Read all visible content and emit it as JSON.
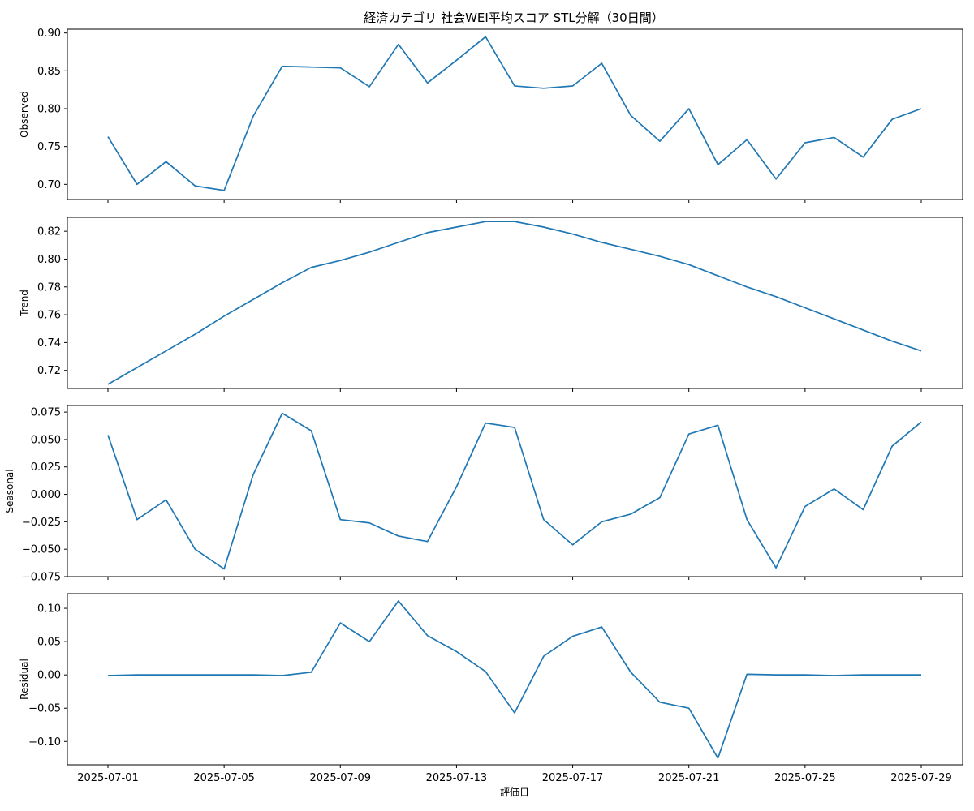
{
  "chart_data": {
    "type": "line",
    "title": "経済カテゴリ 社会WEI平均スコア STL分解（30日間）",
    "xlabel": "評価日",
    "x": [
      "2025-07-01",
      "2025-07-02",
      "2025-07-03",
      "2025-07-04",
      "2025-07-05",
      "2025-07-06",
      "2025-07-07",
      "2025-07-08",
      "2025-07-09",
      "2025-07-10",
      "2025-07-11",
      "2025-07-12",
      "2025-07-13",
      "2025-07-14",
      "2025-07-15",
      "2025-07-16",
      "2025-07-17",
      "2025-07-18",
      "2025-07-19",
      "2025-07-20",
      "2025-07-21",
      "2025-07-22",
      "2025-07-23",
      "2025-07-24",
      "2025-07-25",
      "2025-07-26",
      "2025-07-27",
      "2025-07-28",
      "2025-07-29"
    ],
    "xticks": [
      "2025-07-01",
      "2025-07-05",
      "2025-07-09",
      "2025-07-13",
      "2025-07-17",
      "2025-07-21",
      "2025-07-25",
      "2025-07-29"
    ],
    "line_color": "#1f77b4",
    "grid": false,
    "panels": [
      {
        "name": "observed",
        "ylabel": "Observed",
        "ylim": [
          0.68,
          0.905
        ],
        "yticks": [
          0.7,
          0.75,
          0.8,
          0.85,
          0.9
        ],
        "ytick_labels": [
          "0.70",
          "0.75",
          "0.80",
          "0.85",
          "0.90"
        ],
        "values": [
          0.763,
          0.7,
          0.73,
          0.698,
          0.692,
          0.79,
          0.856,
          0.855,
          0.854,
          0.829,
          0.885,
          0.834,
          0.864,
          0.895,
          0.83,
          0.827,
          0.83,
          0.86,
          0.791,
          0.757,
          0.8,
          0.726,
          0.759,
          0.707,
          0.755,
          0.762,
          0.736,
          0.786,
          0.8
        ]
      },
      {
        "name": "trend",
        "ylabel": "Trend",
        "ylim": [
          0.707,
          0.83
        ],
        "yticks": [
          0.72,
          0.74,
          0.76,
          0.78,
          0.8,
          0.82
        ],
        "ytick_labels": [
          "0.72",
          "0.74",
          "0.76",
          "0.78",
          "0.80",
          "0.82"
        ],
        "values": [
          0.71,
          0.722,
          0.734,
          0.746,
          0.759,
          0.771,
          0.783,
          0.794,
          0.799,
          0.805,
          0.812,
          0.819,
          0.823,
          0.827,
          0.827,
          0.823,
          0.818,
          0.812,
          0.807,
          0.802,
          0.796,
          0.788,
          0.78,
          0.773,
          0.765,
          0.757,
          0.749,
          0.741,
          0.734
        ]
      },
      {
        "name": "seasonal",
        "ylabel": "Seasonal",
        "ylim": [
          -0.075,
          0.081
        ],
        "yticks": [
          -0.075,
          -0.05,
          -0.025,
          0.0,
          0.025,
          0.05,
          0.075
        ],
        "ytick_labels": [
          "−0.075",
          "−0.050",
          "−0.025",
          "0.000",
          "0.025",
          "0.050",
          "0.075"
        ],
        "values": [
          0.054,
          -0.023,
          -0.005,
          -0.05,
          -0.068,
          0.018,
          0.074,
          0.058,
          -0.023,
          -0.026,
          -0.038,
          -0.043,
          0.007,
          0.065,
          0.061,
          -0.023,
          -0.046,
          -0.025,
          -0.018,
          -0.003,
          0.055,
          0.063,
          -0.023,
          -0.067,
          -0.011,
          0.005,
          -0.014,
          0.044,
          0.066
        ]
      },
      {
        "name": "residual",
        "ylabel": "Residual",
        "ylim": [
          -0.135,
          0.122
        ],
        "yticks": [
          -0.1,
          -0.05,
          0.0,
          0.05,
          0.1
        ],
        "ytick_labels": [
          "−0.10",
          "−0.05",
          "0.00",
          "0.05",
          "0.10"
        ],
        "values": [
          -0.001,
          0.0,
          0.0,
          0.0,
          0.0,
          0.0,
          -0.001,
          0.004,
          0.078,
          0.05,
          0.111,
          0.059,
          0.035,
          0.005,
          -0.057,
          0.028,
          0.058,
          0.072,
          0.004,
          -0.041,
          -0.05,
          -0.125,
          0.001,
          0.0,
          0.0,
          -0.001,
          0.0,
          0.0,
          0.0
        ]
      }
    ]
  }
}
